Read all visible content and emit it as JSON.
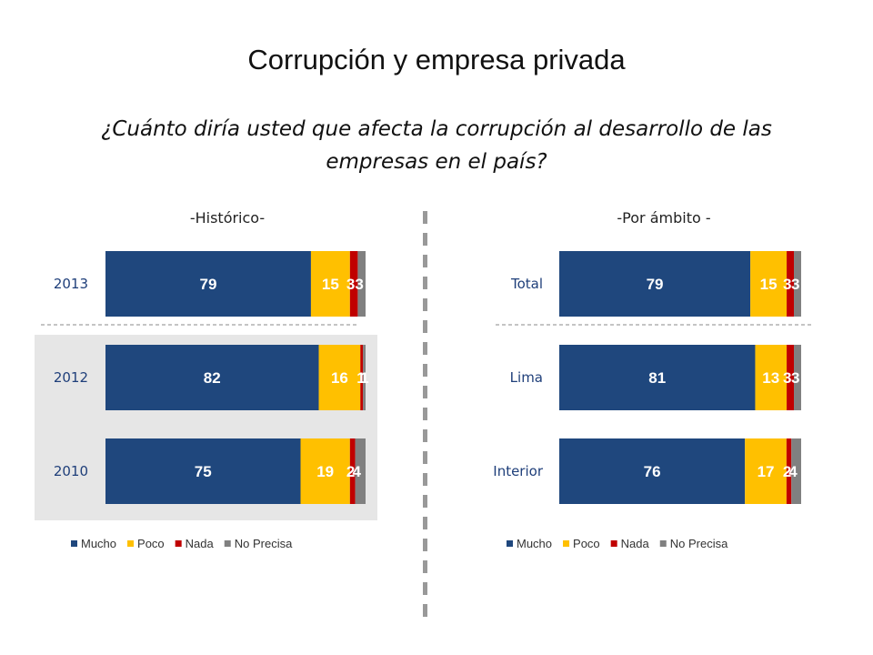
{
  "page": {
    "title": "Corrupción y empresa privada",
    "subtitle": "¿Cuánto diría usted que afecta la corrupción al desarrollo de las empresas en el país?"
  },
  "colors": {
    "Mucho": "#1f477d",
    "Poco": "#ffc000",
    "Nada": "#c00000",
    "No Precisa": "#808080",
    "highlight": "#e6e6e6"
  },
  "chart_data": [
    {
      "type": "bar",
      "orientation": "horizontal",
      "stacked": true,
      "title": "-Histórico-",
      "categories": [
        "2013",
        "2012",
        "2010"
      ],
      "highlighted_category": "2012",
      "series": [
        {
          "name": "Mucho",
          "values": [
            79,
            82,
            75
          ]
        },
        {
          "name": "Poco",
          "values": [
            15,
            16,
            19
          ]
        },
        {
          "name": "Nada",
          "values": [
            3,
            1,
            2
          ]
        },
        {
          "name": "No Precisa",
          "values": [
            3,
            1,
            4
          ]
        }
      ],
      "legend": "bottom"
    },
    {
      "type": "bar",
      "orientation": "horizontal",
      "stacked": true,
      "title": "-Por ámbito -",
      "categories": [
        "Total",
        "Lima",
        "Interior"
      ],
      "series": [
        {
          "name": "Mucho",
          "values": [
            79,
            81,
            76
          ]
        },
        {
          "name": "Poco",
          "values": [
            15,
            13,
            17
          ]
        },
        {
          "name": "Nada",
          "values": [
            3,
            3,
            2
          ]
        },
        {
          "name": "No Precisa",
          "values": [
            3,
            3,
            4
          ]
        }
      ],
      "legend": "bottom"
    }
  ]
}
